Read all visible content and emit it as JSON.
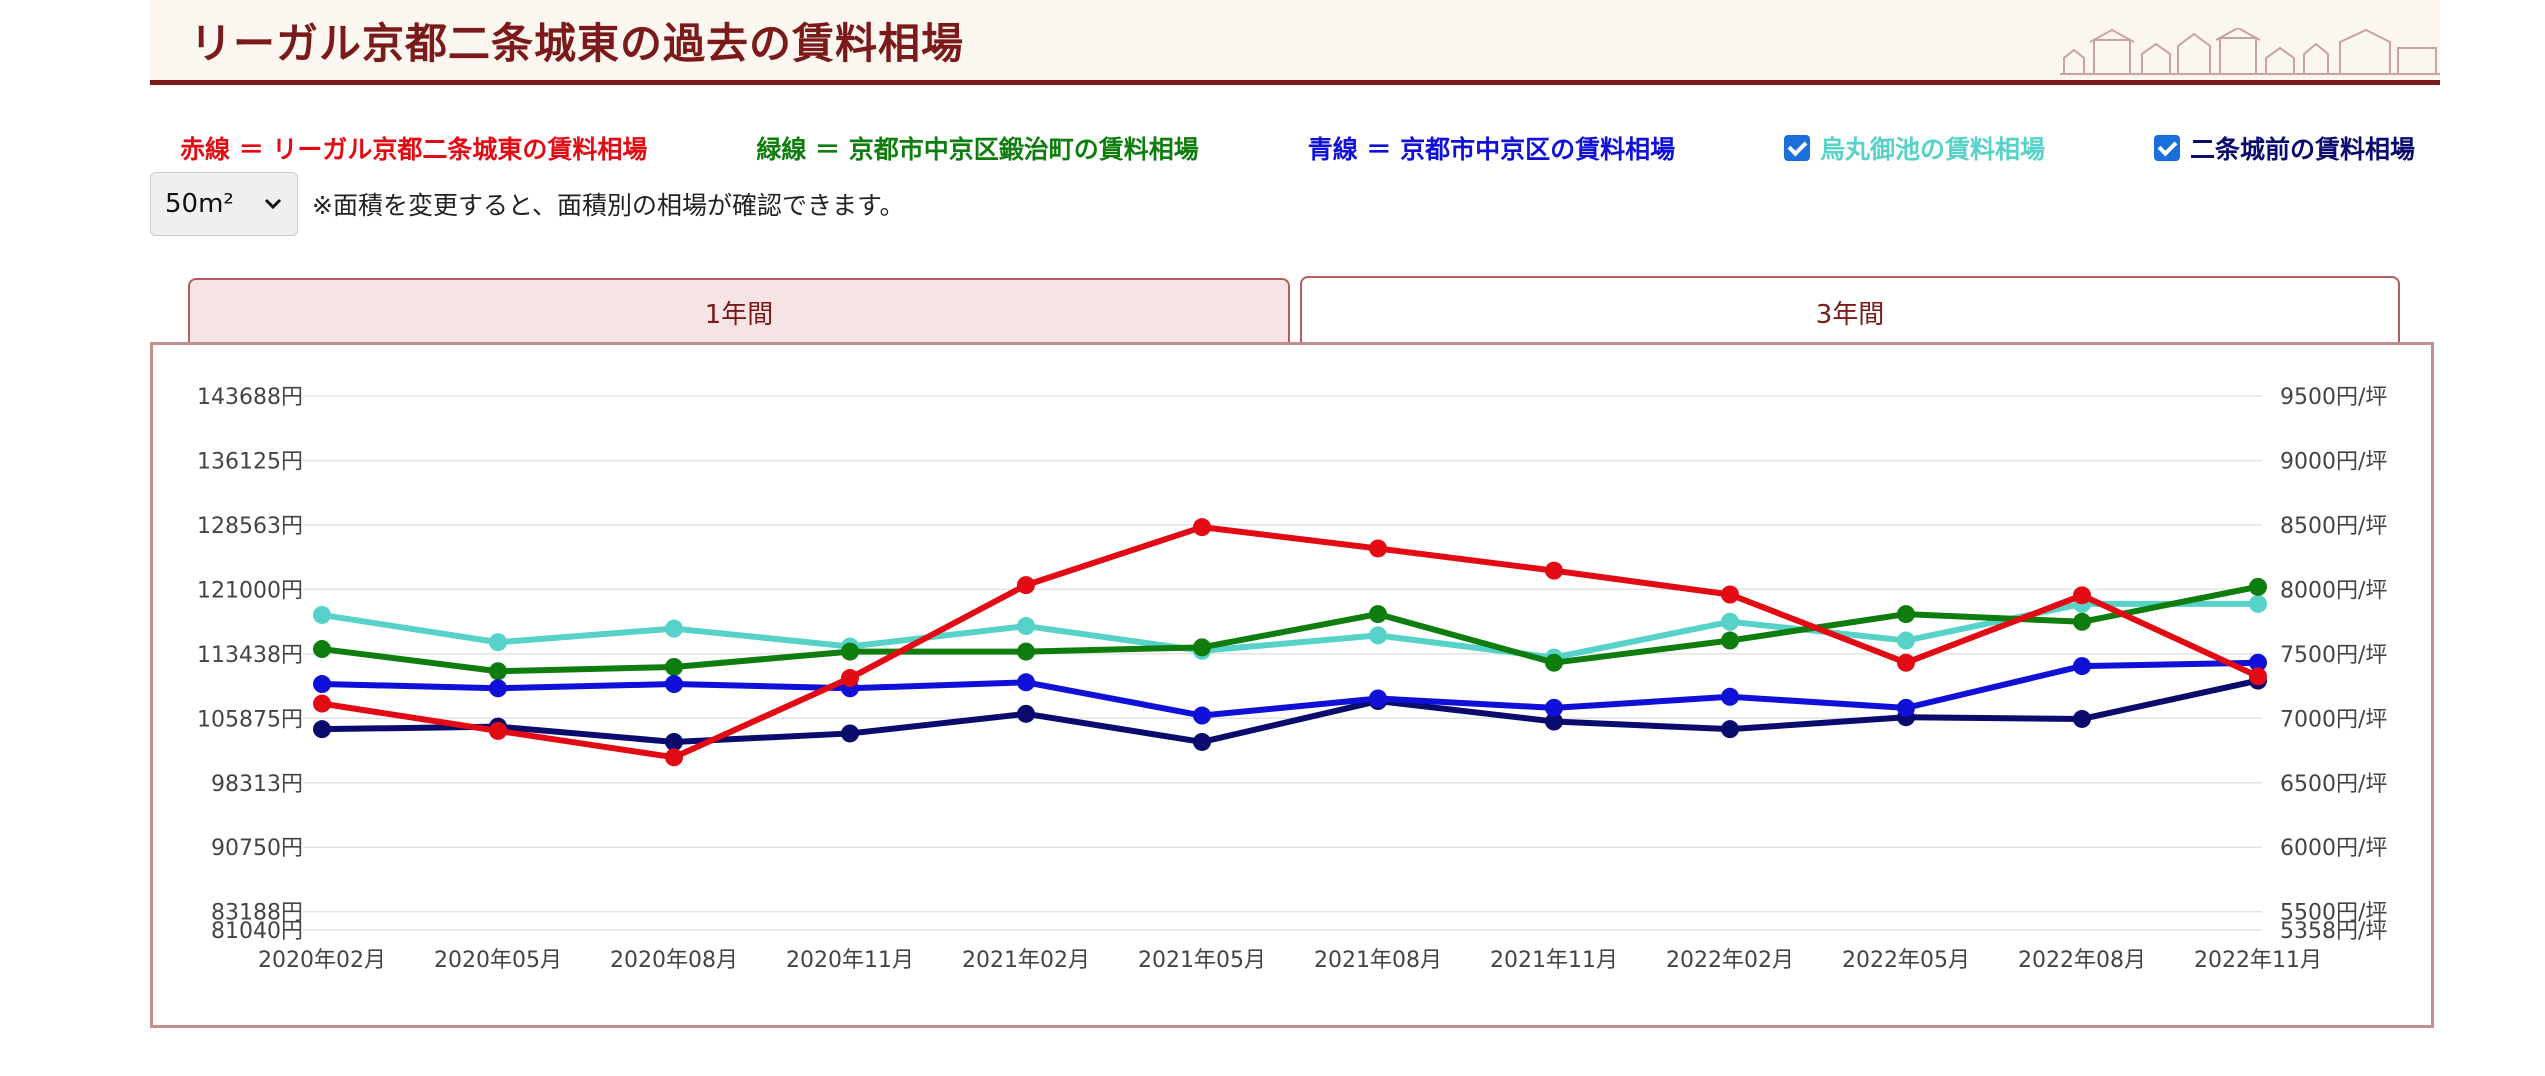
{
  "header": {
    "title": "リーガル京都二条城東の過去の賃料相場"
  },
  "legend": {
    "red": {
      "text": "赤線 ＝ リーガル京都二条城東の賃料相場",
      "color": "#e20b14"
    },
    "green": {
      "text": "緑線 ＝ 京都市中京区鍛治町の賃料相場",
      "color": "#0e7d0e"
    },
    "blue": {
      "text": "青線 ＝ 京都市中京区の賃料相場",
      "color": "#1010d8"
    },
    "turquoise": {
      "text": "烏丸御池の賃料相場",
      "color": "#56d2c8",
      "checked": true
    },
    "navy": {
      "text": "二条城前の賃料相場",
      "color": "#0b0b6e",
      "checked": true
    }
  },
  "area_select": {
    "value": "50m²",
    "note": "※面積を変更すると、面積別の相場が確認できます。"
  },
  "tabs": [
    {
      "label": "1年間",
      "active": false
    },
    {
      "label": "3年間",
      "active": true
    }
  ],
  "icons": {
    "dropdown": "chevron-down-icon",
    "checkbox": "checkbox-checked-icon",
    "decoration": "houses-icon"
  },
  "chart_data": {
    "type": "line",
    "categories": [
      "2020年02月",
      "2020年05月",
      "2020年08月",
      "2020年11月",
      "2021年02月",
      "2021年05月",
      "2021年08月",
      "2021年11月",
      "2022年02月",
      "2022年05月",
      "2022年08月",
      "2022年11月"
    ],
    "y_left_ticks": [
      "143688円",
      "136125円",
      "128563円",
      "121000円",
      "113438円",
      "105875円",
      "98313円",
      "90750円",
      "83188円",
      "81040円"
    ],
    "y_right_ticks": [
      "9500円/坪",
      "9000円/坪",
      "8500円/坪",
      "8000円/坪",
      "7500円/坪",
      "7000円/坪",
      "6500円/坪",
      "6000円/坪",
      "5500円/坪",
      "5358円/坪"
    ],
    "ylim": [
      81040,
      143688
    ],
    "grid": true,
    "series": [
      {
        "key": "turquoise",
        "color": "#56d2c8",
        "values": [
          118000,
          114800,
          116400,
          114300,
          116700,
          113800,
          115600,
          113000,
          117200,
          115000,
          119300,
          119300
        ]
      },
      {
        "key": "green",
        "color": "#0e7d0e",
        "values": [
          114000,
          111400,
          111900,
          113700,
          113700,
          114200,
          118100,
          112400,
          115000,
          118100,
          117200,
          121300
        ]
      },
      {
        "key": "navy",
        "color": "#0b0b6e",
        "values": [
          104600,
          104900,
          103100,
          104100,
          106400,
          103100,
          107900,
          105500,
          104600,
          106000,
          105800,
          110300
        ]
      },
      {
        "key": "blue",
        "color": "#1010d8",
        "values": [
          109900,
          109400,
          109900,
          109400,
          110100,
          106200,
          108200,
          107100,
          108400,
          107100,
          112000,
          112400
        ]
      },
      {
        "key": "red",
        "color": "#e20b14",
        "values": [
          107600,
          104400,
          101300,
          110600,
          121500,
          128300,
          125800,
          123200,
          120400,
          112400,
          120300,
          110800
        ]
      }
    ]
  }
}
